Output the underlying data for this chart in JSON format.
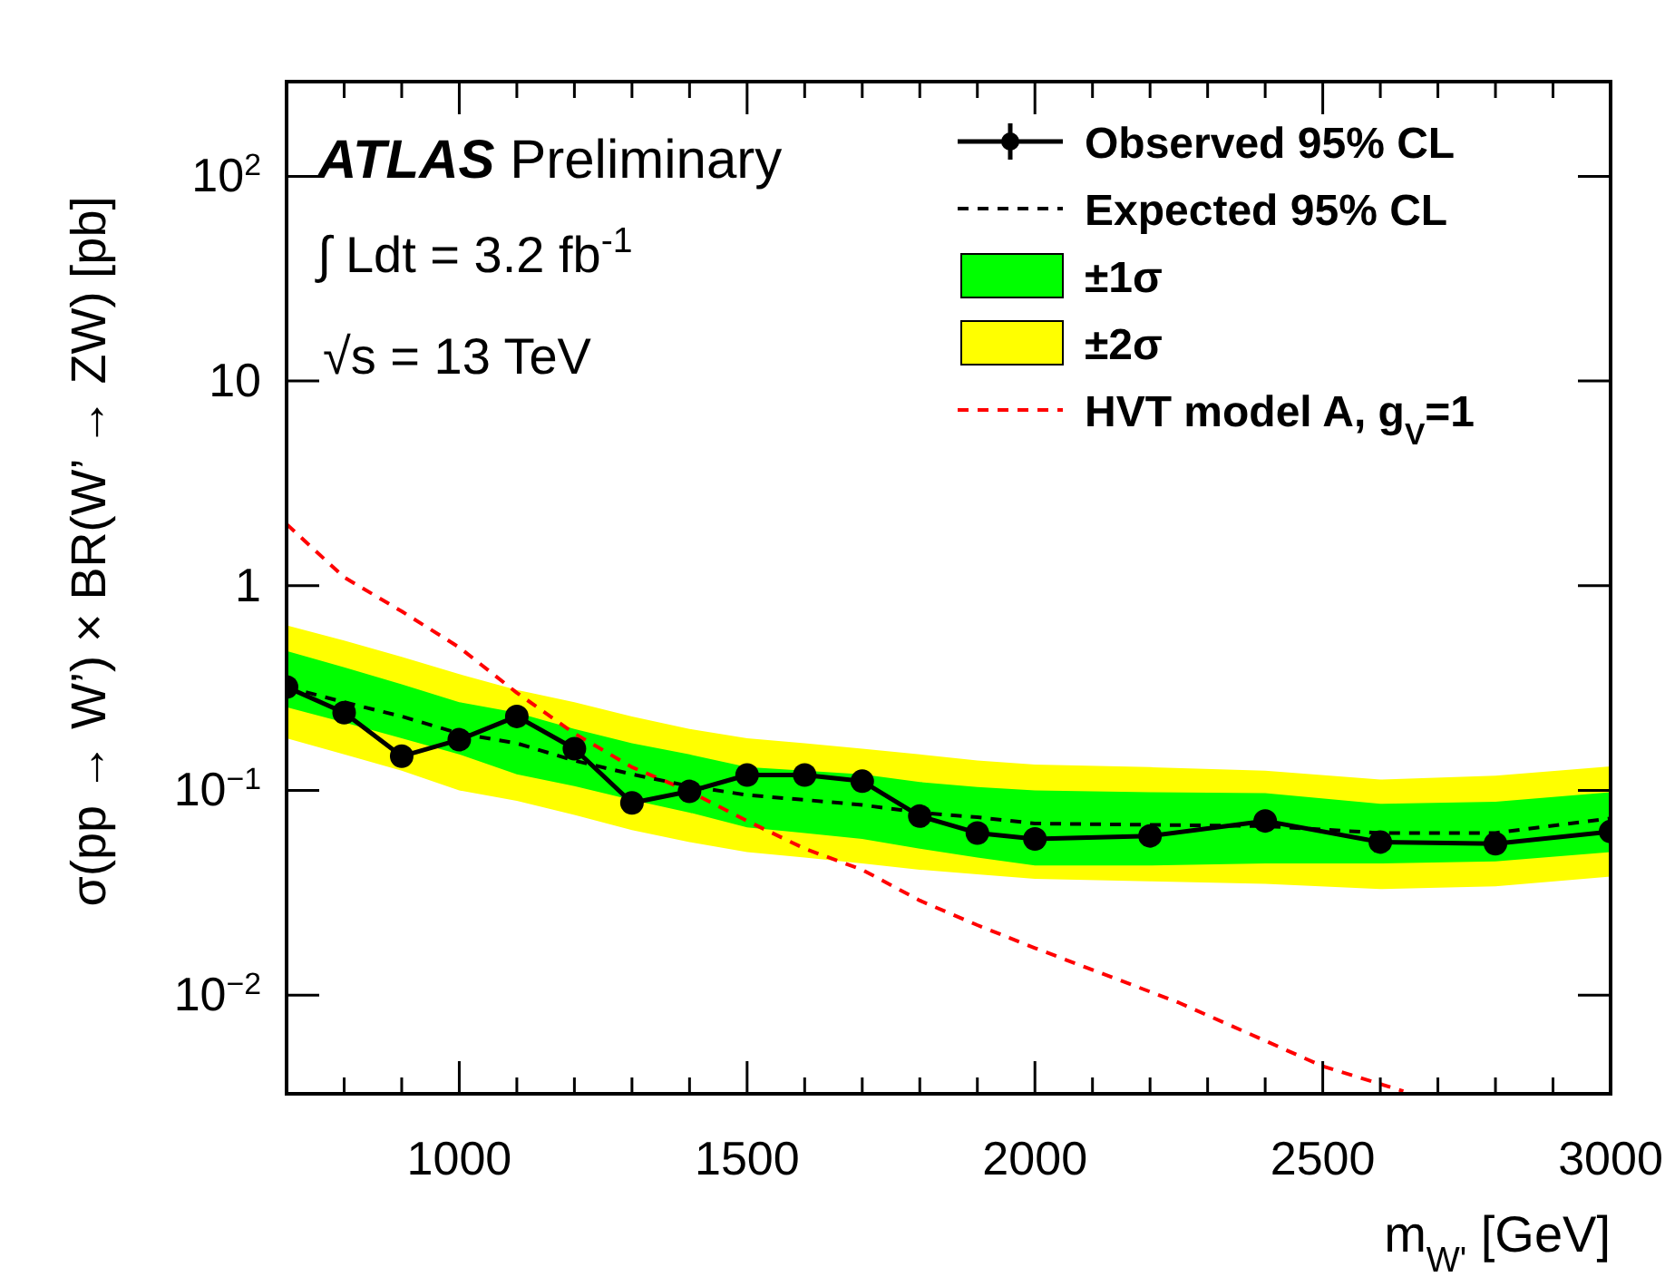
{
  "chart_data": {
    "type": "line",
    "xlabel": "m$_{W'}$ [GeV]",
    "ylabel": "σ(pp → W’) × BR(W’ → ZW) [pb]",
    "annotations": [
      "ATLAS Preliminary",
      "∫ Ldt = 3.2 fb$^{-1}$",
      "√s = 13 TeV"
    ],
    "x": [
      700,
      800,
      900,
      1000,
      1100,
      1200,
      1300,
      1400,
      1500,
      1600,
      1700,
      1800,
      1900,
      2000,
      2200,
      2400,
      2600,
      2800,
      3000
    ],
    "series": [
      {
        "name": "Observed 95% CL",
        "color": "#000000",
        "marker": "circle",
        "line_style": "solid",
        "values": [
          0.32,
          0.24,
          0.147,
          0.177,
          0.23,
          0.16,
          0.087,
          0.099,
          0.119,
          0.119,
          0.111,
          0.075,
          0.062,
          0.058,
          0.06,
          0.071,
          0.056,
          0.055,
          0.063
        ]
      },
      {
        "name": "Expected 95% CL",
        "color": "#000000",
        "marker": "none",
        "line_style": "dashed",
        "values": [
          0.32,
          0.27,
          0.23,
          0.19,
          0.17,
          0.14,
          0.12,
          0.105,
          0.095,
          0.09,
          0.085,
          0.078,
          0.074,
          0.069,
          0.068,
          0.067,
          0.062,
          0.062,
          0.073
        ]
      },
      {
        "name": "±1σ",
        "type": "area",
        "color": "#00ff00",
        "values": [
          null,
          null,
          null,
          null,
          null,
          null,
          null,
          null,
          null,
          null,
          null,
          null,
          null,
          null,
          null,
          null,
          null,
          null,
          null
        ],
        "lower": [
          0.255,
          0.215,
          0.18,
          0.15,
          0.12,
          0.105,
          0.09,
          0.078,
          0.066,
          0.062,
          0.058,
          0.052,
          0.047,
          0.043,
          0.043,
          0.044,
          0.044,
          0.045,
          0.05
        ],
        "upper": [
          0.48,
          0.4,
          0.33,
          0.27,
          0.24,
          0.2,
          0.17,
          0.15,
          0.13,
          0.125,
          0.12,
          0.11,
          0.104,
          0.1,
          0.098,
          0.097,
          0.086,
          0.088,
          0.098
        ]
      },
      {
        "name": "±2σ",
        "type": "area",
        "color": "#ffff00",
        "values": [
          null,
          null,
          null,
          null,
          null,
          null,
          null,
          null,
          null,
          null,
          null,
          null,
          null,
          null,
          null,
          null,
          null,
          null,
          null
        ],
        "lower": [
          0.18,
          0.15,
          0.125,
          0.1,
          0.089,
          0.076,
          0.064,
          0.056,
          0.05,
          0.047,
          0.044,
          0.041,
          0.039,
          0.037,
          0.036,
          0.035,
          0.033,
          0.034,
          0.038
        ],
        "upper": [
          0.64,
          0.54,
          0.45,
          0.37,
          0.31,
          0.27,
          0.23,
          0.2,
          0.18,
          0.17,
          0.16,
          0.15,
          0.14,
          0.134,
          0.13,
          0.125,
          0.113,
          0.118,
          0.131
        ]
      },
      {
        "name": "HVT model A, g$_{V}$=1",
        "color": "#ff0000",
        "marker": "none",
        "line_style": "dashed",
        "x": [
          700,
          800,
          900,
          1000,
          1100,
          1200,
          1300,
          1400,
          1500,
          1600,
          1700,
          1800,
          1900,
          2000,
          2250,
          2500,
          2640
        ],
        "values": [
          2.0,
          1.1,
          0.75,
          0.5,
          0.3,
          0.19,
          0.13,
          0.099,
          0.071,
          0.052,
          0.041,
          0.029,
          0.022,
          0.017,
          0.0092,
          0.0045,
          0.0034
        ]
      }
    ],
    "xlim": [
      700,
      3000
    ],
    "xticks": [
      {
        "value": 800,
        "label": null
      },
      {
        "value": 900,
        "label": null
      },
      1000,
      {
        "value": 1100,
        "label": null
      },
      {
        "value": 1200,
        "label": null
      },
      {
        "value": 1300,
        "label": null
      },
      {
        "value": 1400,
        "label": null
      },
      1500,
      {
        "value": 1600,
        "label": null
      },
      {
        "value": 1700,
        "label": null
      },
      {
        "value": 1800,
        "label": null
      },
      {
        "value": 1900,
        "label": null
      },
      2000,
      {
        "value": 2100,
        "label": null
      },
      {
        "value": 2200,
        "label": null
      },
      {
        "value": 2300,
        "label": null
      },
      {
        "value": 2400,
        "label": null
      },
      2500,
      {
        "value": 2600,
        "label": null
      },
      {
        "value": 2700,
        "label": null
      },
      {
        "value": 2800,
        "label": null
      },
      {
        "value": 2900,
        "label": null
      },
      3000
    ],
    "ylim": [
      0.0033,
      290
    ],
    "yticks": [
      {
        "value": 0.01,
        "label": "10$^{−2}$"
      },
      {
        "value": 0.1,
        "label": "10$^{−1}$"
      },
      1,
      10,
      {
        "value": 100,
        "label": "10$^{2}$"
      }
    ],
    "log": "y",
    "grid": false,
    "legend": "top right"
  }
}
